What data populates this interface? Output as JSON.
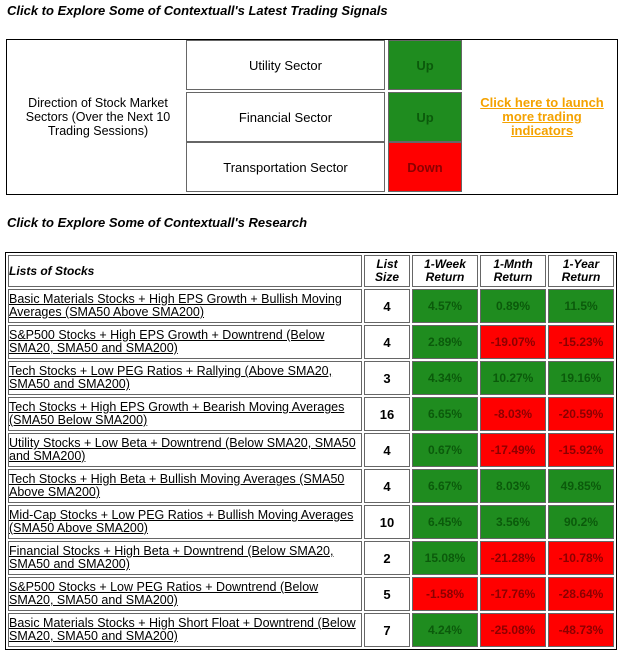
{
  "signals_heading": "Click to Explore Some of Contextuall's Latest Trading Signals",
  "signals": {
    "direction_label": "Direction of Stock Market Sectors (Over the Next 10 Trading Sessions)",
    "sectors": [
      {
        "name": "Utility Sector",
        "signal": "Up"
      },
      {
        "name": "Financial Sector",
        "signal": "Up"
      },
      {
        "name": "Transportation Sector",
        "signal": "Down"
      }
    ],
    "launch_link": "Click here to launch more trading indicators"
  },
  "research_heading": "Click to Explore Some of Contextuall's Research",
  "research": {
    "headers": {
      "name": "Lists of Stocks",
      "size": "List Size",
      "week": "1-Week Return",
      "month": "1-Mnth Return",
      "year": "1-Year Return"
    },
    "rows": [
      {
        "name": "Basic Materials Stocks + High EPS Growth + Bullish Moving Averages (SMA50 Above SMA200)",
        "size": "4",
        "week": "4.57%",
        "month": "0.89%",
        "year": "11.5%"
      },
      {
        "name": "S&P500 Stocks + High EPS Growth + Downtrend (Below SMA20, SMA50 and SMA200)",
        "size": "4",
        "week": "2.89%",
        "month": "-19.07%",
        "year": "-15.23%"
      },
      {
        "name": "Tech Stocks + Low PEG Ratios + Rallying (Above SMA20, SMA50 and SMA200)",
        "size": "3",
        "week": "4.34%",
        "month": "10.27%",
        "year": "19.16%"
      },
      {
        "name": "Tech Stocks + High EPS Growth + Bearish Moving Averages (SMA50 Below SMA200)",
        "size": "16",
        "week": "6.65%",
        "month": "-8.03%",
        "year": "-20.59%"
      },
      {
        "name": "Utility Stocks + Low Beta + Downtrend (Below SMA20, SMA50 and SMA200)",
        "size": "4",
        "week": "0.67%",
        "month": "-17.49%",
        "year": "-15.92%"
      },
      {
        "name": "Tech Stocks + High Beta + Bullish Moving Averages (SMA50 Above SMA200)",
        "size": "4",
        "week": "6.67%",
        "month": "8.03%",
        "year": "49.85%"
      },
      {
        "name": "Mid-Cap Stocks + Low PEG Ratios + Bullish Moving Averages (SMA50 Above SMA200)",
        "size": "10",
        "week": "6.45%",
        "month": "3.56%",
        "year": "90.2%"
      },
      {
        "name": "Financial Stocks + High Beta + Downtrend (Below SMA20, SMA50 and SMA200)",
        "size": "2",
        "week": "15.08%",
        "month": "-21.28%",
        "year": "-10.78%"
      },
      {
        "name": "S&P500 Stocks + Low PEG Ratios + Downtrend (Below SMA20, SMA50 and SMA200)",
        "size": "5",
        "week": "-1.58%",
        "month": "-17.76%",
        "year": "-28.64%"
      },
      {
        "name": "Basic Materials Stocks + High Short Float + Downtrend (Below SMA20, SMA50 and SMA200)",
        "size": "7",
        "week": "4.24%",
        "month": "-25.08%",
        "year": "-48.73%"
      }
    ]
  },
  "colors": {
    "up": "#1f8c1f",
    "down": "#ff0000",
    "link": "#f4a200"
  }
}
